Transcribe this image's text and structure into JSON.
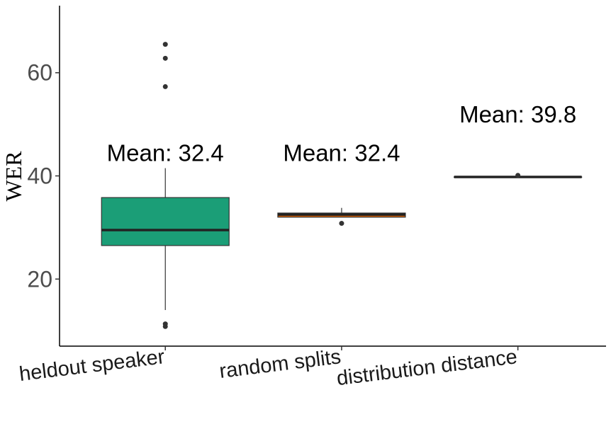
{
  "chart_data": {
    "type": "box",
    "ylabel": "WER",
    "xlabel": "",
    "ylim": [
      7,
      73
    ],
    "yticks": [
      20,
      40,
      60
    ],
    "grid": false,
    "legend": "none",
    "categories": [
      "heldout speaker",
      "random splits",
      "distribution distance"
    ],
    "boxes": [
      {
        "category": "heldout speaker",
        "q1": 26.5,
        "median": 29.5,
        "q3": 35.8,
        "whisker_low": 14.0,
        "whisker_high": 41.5,
        "outliers": [
          65.5,
          62.8,
          57.3,
          11.3,
          10.8
        ],
        "mean_label": "Mean: 32.4",
        "mean_label_y": 44.5,
        "color": "#1b9e77"
      },
      {
        "category": "random splits",
        "q1": 32.0,
        "median": 32.5,
        "q3": 32.8,
        "whisker_low": 32.0,
        "whisker_high": 33.8,
        "outliers": [
          30.8
        ],
        "mean_label": "Mean: 32.4",
        "mean_label_y": 44.5,
        "color": "#d95f02"
      },
      {
        "category": "distribution distance",
        "q1": 39.8,
        "median": 39.8,
        "q3": 39.8,
        "whisker_low": 39.8,
        "whisker_high": 39.8,
        "outliers": [
          40.1
        ],
        "mean_label": "Mean: 39.8",
        "mean_label_y": 52.0,
        "color": "#7570b3"
      }
    ]
  }
}
